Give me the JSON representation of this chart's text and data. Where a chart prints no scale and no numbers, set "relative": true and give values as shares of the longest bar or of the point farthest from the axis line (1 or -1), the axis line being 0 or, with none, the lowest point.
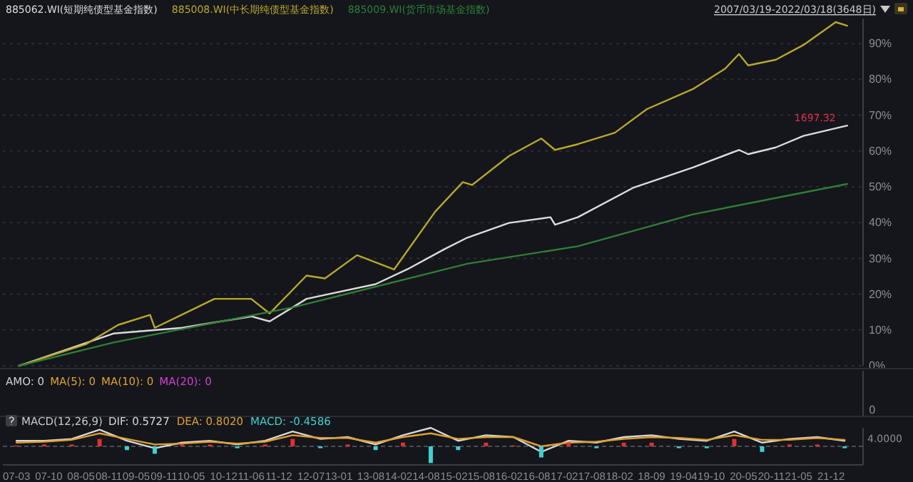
{
  "chart_data": [
    {
      "type": "line",
      "legend": "top left",
      "grid": "y",
      "tick_labels": "y",
      "xlim": [
        "2006-12",
        "2022-07"
      ],
      "ylim": [
        0,
        97
      ],
      "yticks": [
        {
          "value": 0,
          "label": "0%"
        },
        {
          "value": 10,
          "label": "10%"
        },
        {
          "value": 20,
          "label": "20%"
        },
        {
          "value": 30,
          "label": "30%"
        },
        {
          "value": 40,
          "label": "40%"
        },
        {
          "value": 50,
          "label": "50%"
        },
        {
          "value": 60,
          "label": "60%"
        },
        {
          "value": 70,
          "label": "70%"
        },
        {
          "value": 80,
          "label": "80%"
        },
        {
          "value": 90,
          "label": "90%"
        }
      ],
      "annotations": [
        "2007/03/19-2022/03/18(3648日)",
        {
          "text": "1697.32",
          "x": "2022-03-18",
          "y": 67.1
        }
      ],
      "series": [
        {
          "name": "885062.WI(短期纯债型基金指数)",
          "color": "#dcdcdc",
          "x": [
            "2007-03-19",
            "2008-12",
            "2010-03",
            "2011-06",
            "2011-10",
            "2012-06",
            "2013-09",
            "2014-04",
            "2014-12",
            "2015-05",
            "2016-02",
            "2016-11",
            "2016-12",
            "2017-05",
            "2018-05",
            "2019-06",
            "2020-04",
            "2020-06",
            "2020-12",
            "2021-06",
            "2022-03-18"
          ],
          "values": [
            0,
            9,
            10.6,
            13.8,
            12.4,
            18.7,
            22.8,
            27,
            32.6,
            35.8,
            39.9,
            41.5,
            39.4,
            41.5,
            49.7,
            55.4,
            60.3,
            59.1,
            61,
            64.2,
            67.1
          ]
        },
        {
          "name": "885008.WI(中长期纯债型基金指数)",
          "color": "#b8a82c",
          "x": [
            "2007-03-19",
            "2008-06",
            "2009-01",
            "2009-08",
            "2009-09",
            "2010-10",
            "2011-06",
            "2011-10",
            "2012-06",
            "2012-10",
            "2013-05",
            "2014-01",
            "2014-10",
            "2015-04",
            "2015-06",
            "2016-02",
            "2016-09",
            "2016-12",
            "2017-05",
            "2018-01",
            "2018-08",
            "2019-06",
            "2020-01",
            "2020-04",
            "2020-06",
            "2020-12",
            "2021-06",
            "2022-01",
            "2022-03-18"
          ],
          "values": [
            0,
            6,
            11.4,
            14.2,
            10.6,
            18.7,
            18.7,
            14.6,
            25.2,
            24.4,
            30.9,
            26.9,
            43.1,
            51.3,
            50.5,
            58.6,
            63.5,
            60.3,
            61.9,
            65.1,
            71.7,
            77.3,
            83,
            87.1,
            83.9,
            85.5,
            89.6,
            96,
            95
          ]
        },
        {
          "name": "885009.WI(货币市场基金指数)",
          "color": "#2f7f36",
          "x": [
            "2007-03-19",
            "2008-12",
            "2012-03",
            "2015-05",
            "2017-05",
            "2019-06",
            "2022-03-18"
          ],
          "values": [
            0,
            6.5,
            16.3,
            28.5,
            33.4,
            42.3,
            50.8
          ]
        }
      ]
    },
    {
      "type": "other",
      "annotations": [
        "AMO: 0",
        "MA(5): 0",
        "MA(10): 0",
        "MA(20): 0",
        "0"
      ]
    },
    {
      "type": "line",
      "title": "MACD(12,26,9)",
      "relative": true,
      "tick_labels": "x",
      "xlim": [
        "2006-12",
        "2022-07"
      ],
      "xticks": [
        {
          "value": "2007-03",
          "label": "07-03"
        },
        {
          "value": "2007-10",
          "label": "07-10"
        },
        {
          "value": "2008-05",
          "label": "08-05"
        },
        {
          "value": "2008-11",
          "label": "08-11"
        },
        {
          "value": "2009-05",
          "label": "09-05"
        },
        {
          "value": "2009-11",
          "label": "09-11"
        },
        {
          "value": "2010-05",
          "label": "10-05"
        },
        {
          "value": "2010-12",
          "label": "10-12"
        },
        {
          "value": "2011-06",
          "label": "11-06"
        },
        {
          "value": "2011-12",
          "label": "11-12"
        },
        {
          "value": "2012-07",
          "label": "12-07"
        },
        {
          "value": "2013-01",
          "label": "13-01"
        },
        {
          "value": "2013-08",
          "label": "13-08"
        },
        {
          "value": "2014-02",
          "label": "14-02"
        },
        {
          "value": "2014-08",
          "label": "14-08"
        },
        {
          "value": "2015-02",
          "label": "15-02"
        },
        {
          "value": "2015-08",
          "label": "15-08"
        },
        {
          "value": "2016-02",
          "label": "16-02"
        },
        {
          "value": "2016-08",
          "label": "16-08"
        },
        {
          "value": "2017-02",
          "label": "17-02"
        },
        {
          "value": "2017-08",
          "label": "17-08"
        },
        {
          "value": "2018-02",
          "label": "18-02"
        },
        {
          "value": "2018-09",
          "label": "18-09"
        },
        {
          "value": "2019-04",
          "label": "19-04"
        },
        {
          "value": "2019-10",
          "label": "19-10"
        },
        {
          "value": "2020-05",
          "label": "20-05"
        },
        {
          "value": "2020-11",
          "label": "20-11"
        },
        {
          "value": "2021-05",
          "label": "21-05"
        },
        {
          "value": "2021-12",
          "label": "21-12"
        }
      ],
      "annotations": [
        "DIF: 0.5727",
        "DEA: 0.8020",
        "MACD: -0.4586",
        "4.0000"
      ],
      "ref_lines": [
        {
          "axis": "y",
          "value": 0,
          "line_style": "dashed",
          "color": "#4a4d54"
        }
      ],
      "x": [
        "2007-03",
        "2007-09",
        "2008-03",
        "2008-09",
        "2009-03",
        "2009-09",
        "2010-03",
        "2010-09",
        "2011-03",
        "2011-09",
        "2012-03",
        "2012-09",
        "2013-03",
        "2013-09",
        "2014-03",
        "2014-09",
        "2015-03",
        "2015-09",
        "2016-03",
        "2016-09",
        "2017-03",
        "2017-09",
        "2018-03",
        "2018-09",
        "2019-03",
        "2019-09",
        "2020-03",
        "2020-09",
        "2021-03",
        "2021-09",
        "2022-03"
      ],
      "series": [
        {
          "type": "line",
          "color": "#d8d8d8",
          "values": [
            0.3,
            0.3,
            0.4,
            0.9,
            0.3,
            -0.1,
            0.2,
            0.3,
            0.1,
            0.3,
            0.8,
            0.4,
            0.5,
            0.1,
            0.6,
            1,
            0.3,
            0.6,
            0.5,
            -0.3,
            0.3,
            0.2,
            0.5,
            0.6,
            0.4,
            0.3,
            0.8,
            0.2,
            0.4,
            0.5,
            0.3
          ]
        },
        {
          "type": "line",
          "color": "#e0a030",
          "values": [
            0.2,
            0.25,
            0.35,
            0.7,
            0.4,
            0.1,
            0.15,
            0.25,
            0.15,
            0.25,
            0.6,
            0.45,
            0.45,
            0.2,
            0.5,
            0.7,
            0.4,
            0.5,
            0.5,
            0,
            0.2,
            0.25,
            0.4,
            0.5,
            0.45,
            0.35,
            0.6,
            0.35,
            0.35,
            0.45,
            0.35
          ]
        },
        {
          "type": "bar",
          "color": "#40d0d0",
          "colors": [
            "#e03030",
            "#e03030",
            "#e03030",
            "#e03030",
            "#40d0d0",
            "#40d0d0",
            "#e03030",
            "#e03030",
            "#40d0d0",
            "#e03030",
            "#e03030",
            "#40d0d0",
            "#e03030",
            "#40d0d0",
            "#e03030",
            "#40d0d0",
            "#40d0d0",
            "#e03030",
            "#e03030",
            "#40d0d0",
            "#e03030",
            "#40d0d0",
            "#e03030",
            "#e03030",
            "#40d0d0",
            "#40d0d0",
            "#e03030",
            "#40d0d0",
            "#e03030",
            "#e03030",
            "#40d0d0"
          ],
          "values": [
            0.05,
            0.1,
            0.1,
            0.4,
            -0.2,
            -0.4,
            0.1,
            0.1,
            -0.1,
            0.1,
            0.4,
            -0.1,
            0.1,
            -0.2,
            0.2,
            -0.9,
            -0.2,
            0.2,
            0.05,
            -0.6,
            0.2,
            -0.1,
            0.2,
            0.2,
            -0.1,
            -0.1,
            0.4,
            -0.3,
            0.1,
            0.1,
            -0.1
          ]
        }
      ]
    }
  ]
}
